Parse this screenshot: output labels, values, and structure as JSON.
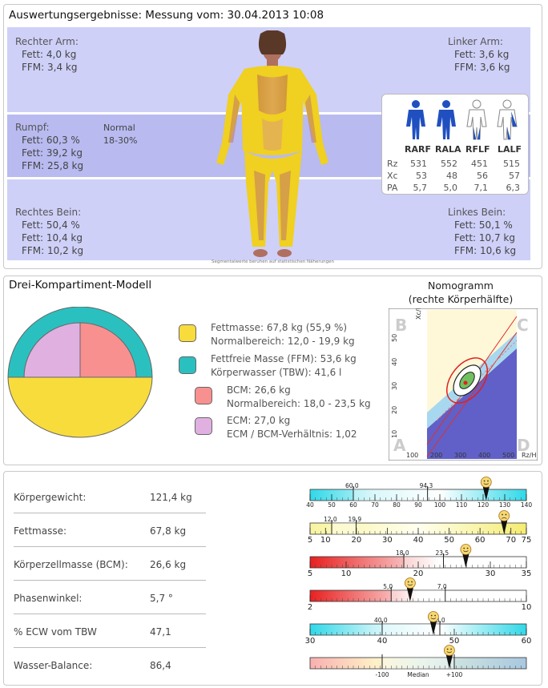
{
  "header": {
    "title": "Auswertungsergebnisse: Messung vom: 30.04.2013 10:08"
  },
  "segments": {
    "right_arm": {
      "label": "Rechter Arm:",
      "fat": "Fett: 4,0 kg",
      "ffm": "FFM: 3,4 kg"
    },
    "left_arm": {
      "label": "Linker Arm:",
      "fat": "Fett: 3,6 kg",
      "ffm": "FFM: 3,6 kg"
    },
    "trunk": {
      "label": "Rumpf:",
      "fat_pct": "Fett: 60,3 %",
      "fat": "Fett: 39,2 kg",
      "ffm": "FFM: 25,8 kg",
      "norm_label": "Normal",
      "norm_range": "18-30%"
    },
    "right_leg": {
      "label": "Rechtes Bein:",
      "fat_pct": "Fett: 50,4 %",
      "fat": "Fett: 10,4 kg",
      "ffm": "FFM: 10,2 kg"
    },
    "left_leg": {
      "label": "Linkes Bein:",
      "fat_pct": "Fett: 50,1 %",
      "fat": "Fett: 10,7 kg",
      "ffm": "FFM: 10,6 kg"
    },
    "footnote": "Segmentalwerte beruhen auf statistischen Näherungen"
  },
  "impedance_table": {
    "columns": [
      "RARF",
      "RALA",
      "RFLF",
      "LALF"
    ],
    "rows": [
      {
        "label": "Rz",
        "values": [
          "531",
          "552",
          "451",
          "515"
        ]
      },
      {
        "label": "Xc",
        "values": [
          "53",
          "48",
          "56",
          "57"
        ]
      },
      {
        "label": "PA",
        "values": [
          "5,7",
          "5,0",
          "7,1",
          "6,3"
        ]
      }
    ]
  },
  "three_comp": {
    "title": "Drei-Kompartiment-Modell",
    "colors": {
      "fat": "#f8dc3c",
      "ffm": "#2bc0c0",
      "bcm": "#f89090",
      "ecm": "#e0b0e0"
    },
    "fat": {
      "line1": "Fettmasse: 67,8 kg (55,9 %)",
      "line2": "Normalbereich: 12,0 - 19,9 kg"
    },
    "ffm": {
      "line1": "Fettfreie Masse (FFM): 53,6 kg",
      "line2": "Körperwasser (TBW): 41,6 l"
    },
    "bcm": {
      "line1": "BCM: 26,6 kg",
      "line2": "Normalbereich: 18,0 - 23,5 kg"
    },
    "ecm": {
      "line1": "ECM: 27,0 kg",
      "line2": "ECM / BCM-Verhältnis: 1,02"
    }
  },
  "nomogram": {
    "title1": "Nomogramm",
    "title2": "(rechte Körperhälfte)",
    "y_label": "Xc/H",
    "x_label": "Rz/H",
    "corner_a": "A",
    "corner_b": "B",
    "corner_c": "C",
    "corner_d": "D",
    "y_ticks": [
      "10",
      "20",
      "30",
      "40",
      "50"
    ],
    "x_ticks": [
      "100",
      "200",
      "300",
      "400",
      "500"
    ]
  },
  "metrics": [
    {
      "label": "Körpergewicht:",
      "value": "121,4 kg"
    },
    {
      "label": "Fettmasse:",
      "value": "67,8 kg"
    },
    {
      "label": "Körperzellmasse (BCM):",
      "value": "26,6 kg"
    },
    {
      "label": "Phasenwinkel:",
      "value": "5,7 °"
    },
    {
      "label": "% ECW vom TBW",
      "value": "47,1"
    },
    {
      "label": "Wasser-Balance:",
      "value": "86,4"
    }
  ],
  "scales": [
    {
      "min": 40,
      "max": 140,
      "ticks": [
        "40",
        "50",
        "60",
        "70",
        "80",
        "90",
        "100",
        "110",
        "120",
        "130",
        "140"
      ],
      "ref": [
        60.0,
        94.3
      ],
      "ref_labels": [
        "60,0",
        "94,3"
      ],
      "marker": 121.4,
      "color": "#6ee0ea",
      "gradient": "cyan",
      "mood": "happy"
    },
    {
      "min": 5,
      "max": 75,
      "ticks": [
        "5",
        "10",
        "20",
        "30",
        "40",
        "50",
        "60",
        "70",
        "75"
      ],
      "tick_vals": [
        5,
        10,
        20,
        30,
        40,
        50,
        60,
        70,
        75
      ],
      "ref": [
        12.0,
        19.9
      ],
      "ref_labels": [
        "12,0",
        "19,9"
      ],
      "marker": 67.8,
      "color": "#f4f08c",
      "gradient": "yellow",
      "mood": "sad"
    },
    {
      "min": 5,
      "max": 35,
      "ticks": [
        "5",
        "10",
        "20",
        "30",
        "35"
      ],
      "tick_vals": [
        5,
        10,
        20,
        30,
        35
      ],
      "ref": [
        18.0,
        23.5
      ],
      "ref_labels": [
        "18,0",
        "23,5"
      ],
      "marker": 26.6,
      "color": "#f03030",
      "gradient": "red",
      "mood": "happy"
    },
    {
      "min": 2,
      "max": 10,
      "ticks": [
        "2",
        "10"
      ],
      "tick_vals": [
        2,
        10
      ],
      "ref": [
        5.0,
        7.0
      ],
      "ref_labels": [
        "5,0",
        "7,0"
      ],
      "marker": 5.7,
      "color": "#f03030",
      "gradient": "red2",
      "mood": "happy"
    },
    {
      "min": 30,
      "max": 60,
      "ticks": [
        "30",
        "40",
        "50",
        "60"
      ],
      "tick_vals": [
        30,
        40,
        50,
        60
      ],
      "ref": [
        40.0,
        48.0
      ],
      "ref_labels": [
        "40,0",
        "48,0"
      ],
      "marker": 47.1,
      "color": "#6ee0ea",
      "gradient": "cyan",
      "mood": "happy"
    },
    {
      "min": -300,
      "max": 300,
      "ticks": [
        "-100",
        "Median",
        "+100"
      ],
      "tick_vals": [
        -100,
        0,
        100
      ],
      "ref": [
        -100,
        100
      ],
      "ref_labels": [
        "",
        ""
      ],
      "marker": 86.4,
      "color": "#a8d8e0",
      "gradient": "balance",
      "mood": "happy"
    }
  ]
}
